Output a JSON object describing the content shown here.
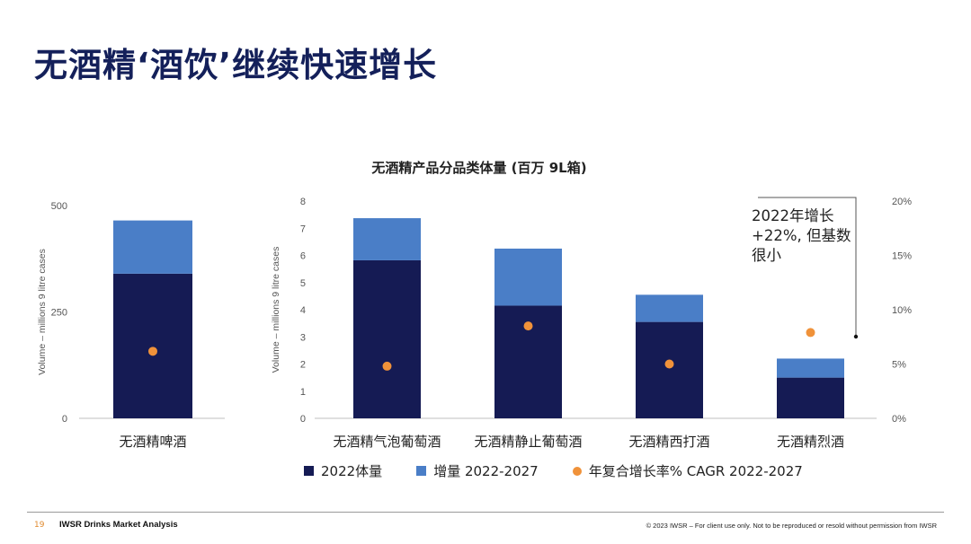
{
  "page": {
    "title": "无酒精‘酒饮’继续快速增长",
    "page_number": "19",
    "brand": "IWSR Drinks Market Analysis",
    "copyright": "© 2023 IWSR – For client use only. Not to be reproduced or resold without permission from IWSR"
  },
  "colors": {
    "base": "#151b54",
    "growth": "#4a7ec7",
    "cagr": "#f0923a",
    "title": "#14205a"
  },
  "annotation": {
    "line1": "2022年增长",
    "line2": "+22%, 但基数",
    "line3": "很小"
  },
  "legend": {
    "base_label": "2022体量",
    "growth_label": "增量 2022-2027",
    "cagr_label": "年复合增长率% CAGR 2022-2027"
  },
  "chart_data": [
    {
      "type": "bar",
      "stacked": true,
      "title": "",
      "ylabel": "Volume – millions 9 litre cases",
      "ylim": [
        0,
        500
      ],
      "yticks": [
        0,
        250,
        500
      ],
      "categories": [
        "无酒精啤酒"
      ],
      "series": [
        {
          "name": "2022体量",
          "values": [
            340
          ]
        },
        {
          "name": "增量 2022-2027",
          "values": [
            125
          ]
        }
      ],
      "cagr": {
        "name": "年复合增长率% CAGR 2022-2027",
        "values": [
          6.3
        ]
      },
      "y2lim": [
        0,
        20
      ]
    },
    {
      "type": "bar",
      "stacked": true,
      "title": "无酒精产品分品类体量 (百万 9L箱)",
      "ylabel": "Volume – millions 9 litre cases",
      "ylim": [
        0,
        8
      ],
      "yticks": [
        0,
        1,
        2,
        3,
        4,
        5,
        6,
        7,
        8
      ],
      "y2label_ticks": [
        "0%",
        "5%",
        "10%",
        "15%",
        "20%"
      ],
      "y2lim": [
        0,
        20
      ],
      "categories": [
        "无酒精气泡葡萄酒",
        "无酒精静止葡萄酒",
        "无酒精西打酒",
        "无酒精烈酒"
      ],
      "series": [
        {
          "name": "2022体量",
          "values": [
            5.82,
            4.15,
            3.55,
            1.5
          ]
        },
        {
          "name": "增量 2022-2027",
          "values": [
            1.55,
            2.1,
            1.0,
            0.7
          ]
        }
      ],
      "cagr": {
        "name": "年复合增长率% CAGR 2022-2027",
        "values": [
          4.8,
          8.5,
          5.0,
          7.9
        ]
      }
    }
  ]
}
